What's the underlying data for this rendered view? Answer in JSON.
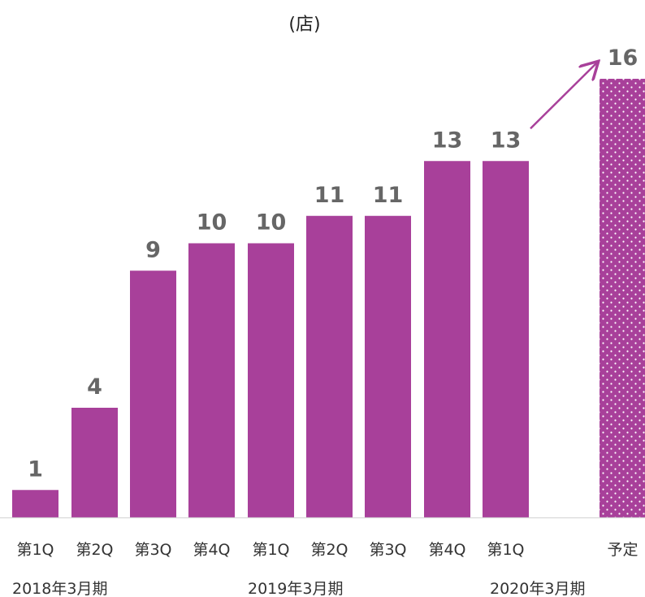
{
  "chart_data": {
    "type": "bar",
    "unit": "(店)",
    "categories": [
      "第1Q",
      "第2Q",
      "第3Q",
      "第4Q",
      "第1Q",
      "第2Q",
      "第3Q",
      "第4Q",
      "第1Q",
      "予定"
    ],
    "values": [
      1,
      4,
      9,
      10,
      10,
      11,
      11,
      13,
      13,
      16
    ],
    "planned": [
      false,
      false,
      false,
      false,
      false,
      false,
      false,
      false,
      false,
      true
    ],
    "groups": [
      {
        "label": "2018年3月期",
        "start": 0,
        "end": 3
      },
      {
        "label": "2019年3月期",
        "start": 4,
        "end": 7
      },
      {
        "label": "2020年3月期",
        "start": 8,
        "end": 9
      }
    ],
    "ylim": [
      0,
      16
    ],
    "grid": false,
    "legend": "none"
  },
  "colors": {
    "bar": "#a8409a",
    "planned_dots": "#ffffff",
    "arrow": "#a8409a",
    "value_label": "#666666",
    "axis_text": "#333333",
    "axis_line": "#d9d9d9"
  }
}
